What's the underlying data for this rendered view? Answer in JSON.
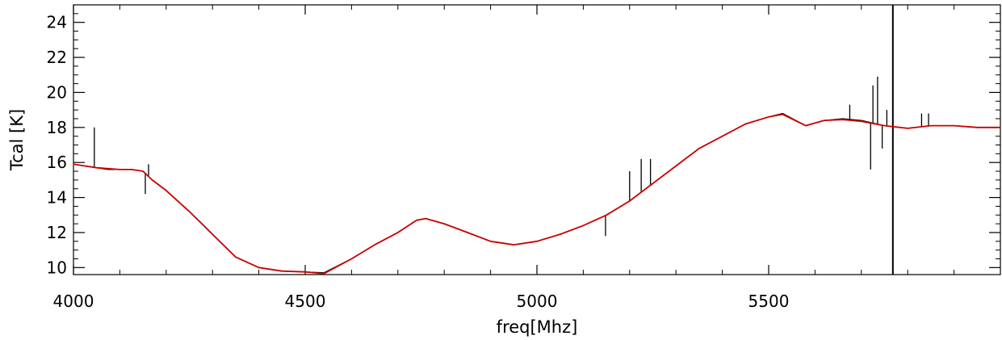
{
  "chart_data": {
    "type": "line",
    "title": "",
    "xlabel": "freq[Mhz]",
    "ylabel": "Tcal [K]",
    "xlim": [
      4000,
      6000
    ],
    "ylim": [
      9.6,
      25
    ],
    "xticks": [
      4000,
      4500,
      5000,
      5500
    ],
    "yticks": [
      10,
      12,
      14,
      16,
      18,
      20,
      22,
      24
    ],
    "grid": false,
    "legend": "none",
    "series": [
      {
        "color": "#000000",
        "x": [
          4000,
          4025,
          4050,
          4075,
          4100,
          4125,
          4150,
          4170,
          4200,
          4250,
          4300,
          4350,
          4400,
          4450,
          4500,
          4540,
          4600,
          4650,
          4700,
          4740,
          4760,
          4800,
          4850,
          4900,
          4950,
          5000,
          5050,
          5100,
          5150,
          5200,
          5250,
          5300,
          5350,
          5400,
          5450,
          5500,
          5530,
          5580,
          5620,
          5660,
          5700,
          5750,
          5800,
          5850,
          5900,
          5950,
          6000
        ],
        "y": [
          15.9,
          15.8,
          15.7,
          15.6,
          15.6,
          15.6,
          15.5,
          15.0,
          14.4,
          13.2,
          11.9,
          10.6,
          10.0,
          9.8,
          9.75,
          9.7,
          10.5,
          11.3,
          12.0,
          12.7,
          12.8,
          12.5,
          12.0,
          11.5,
          11.3,
          11.5,
          11.9,
          12.4,
          13.0,
          13.8,
          14.8,
          15.8,
          16.8,
          17.5,
          18.2,
          18.6,
          18.8,
          18.1,
          18.4,
          18.5,
          18.4,
          18.1,
          17.95,
          18.1,
          18.1,
          18.0,
          18.0
        ],
        "spikes": [
          {
            "x": 4045,
            "y": 18.0
          },
          {
            "x": 4155,
            "y": 14.2
          },
          {
            "x": 4162,
            "y": 15.9
          },
          {
            "x": 5200,
            "y": 15.5
          },
          {
            "x": 5225,
            "y": 16.2
          },
          {
            "x": 5245,
            "y": 16.2
          },
          {
            "x": 5148,
            "y": 11.8
          },
          {
            "x": 5675,
            "y": 19.3
          },
          {
            "x": 5720,
            "y": 15.6
          },
          {
            "x": 5725,
            "y": 20.4
          },
          {
            "x": 5735,
            "y": 20.9
          },
          {
            "x": 5745,
            "y": 16.8
          },
          {
            "x": 5755,
            "y": 19.0
          },
          {
            "x": 5768,
            "y": 25.0
          },
          {
            "x": 5768,
            "y": 9.6
          },
          {
            "x": 5830,
            "y": 18.8
          },
          {
            "x": 5845,
            "y": 18.8
          }
        ]
      },
      {
        "color": "#cc0000",
        "x": [
          4000,
          4025,
          4050,
          4075,
          4100,
          4125,
          4150,
          4170,
          4200,
          4250,
          4300,
          4350,
          4400,
          4450,
          4500,
          4540,
          4600,
          4650,
          4700,
          4740,
          4760,
          4800,
          4850,
          4900,
          4950,
          5000,
          5050,
          5100,
          5150,
          5200,
          5250,
          5300,
          5350,
          5400,
          5450,
          5500,
          5530,
          5580,
          5620,
          5660,
          5700,
          5750,
          5800,
          5850,
          5900,
          5950,
          6000
        ],
        "y": [
          15.9,
          15.8,
          15.7,
          15.65,
          15.6,
          15.6,
          15.5,
          15.0,
          14.4,
          13.2,
          11.9,
          10.6,
          10.0,
          9.8,
          9.75,
          9.65,
          10.5,
          11.3,
          12.0,
          12.7,
          12.8,
          12.5,
          12.0,
          11.5,
          11.3,
          11.5,
          11.9,
          12.4,
          13.0,
          13.8,
          14.8,
          15.8,
          16.8,
          17.5,
          18.2,
          18.6,
          18.75,
          18.1,
          18.4,
          18.45,
          18.35,
          18.1,
          17.95,
          18.1,
          18.1,
          18.0,
          18.0
        ]
      }
    ]
  }
}
